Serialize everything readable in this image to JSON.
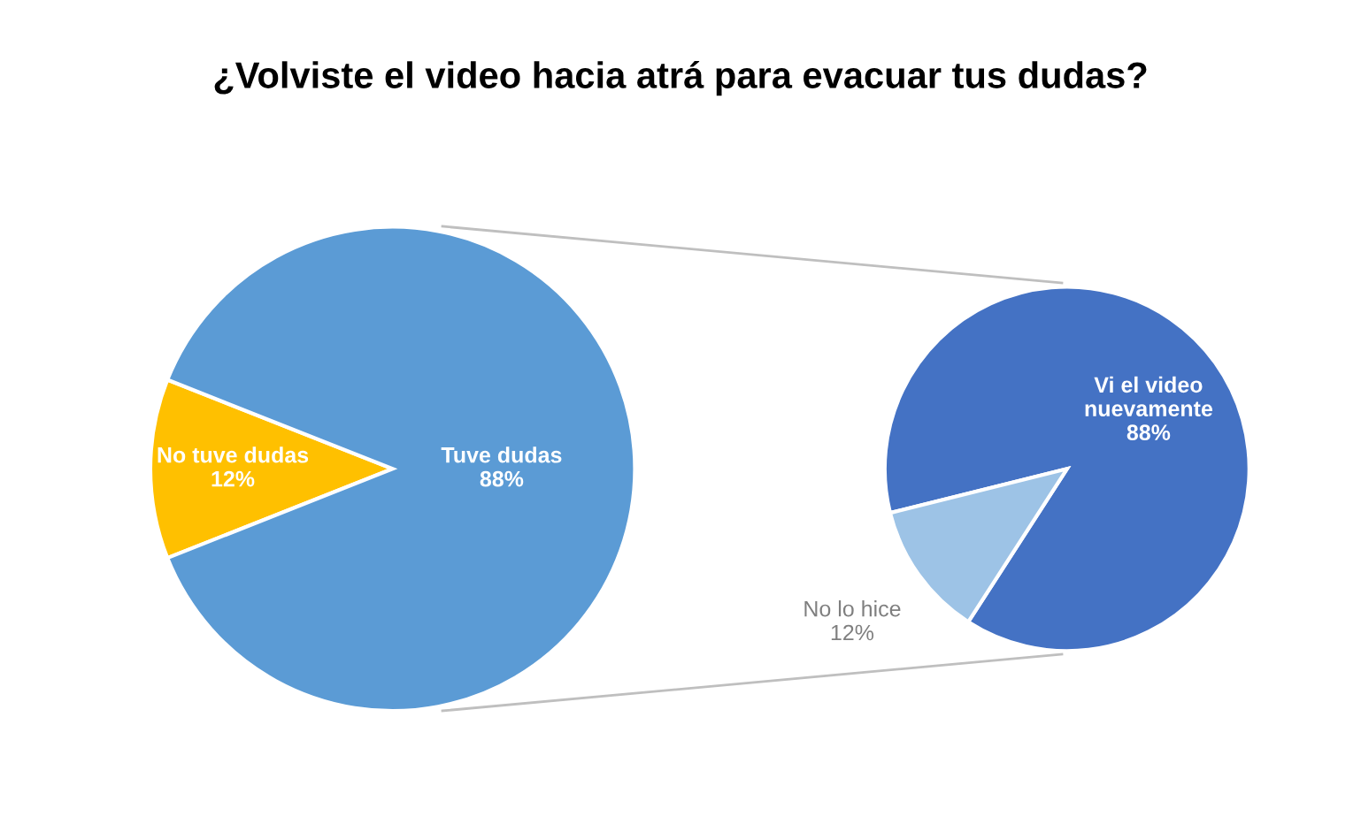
{
  "chart_data": [
    {
      "type": "pie",
      "title": "¿Volviste el video hacia atrá para evacuar tus dudas?",
      "categories": [
        "No tuve dudas",
        "Tuve dudas"
      ],
      "values": [
        12,
        88
      ],
      "colors": [
        "#ffc000",
        "#5b9bd5"
      ],
      "value_labels": [
        "12%",
        "88%"
      ],
      "legend": false
    },
    {
      "type": "pie",
      "categories": [
        "Vi el video\nnuevamente",
        "No lo hice"
      ],
      "values": [
        88,
        12
      ],
      "colors": [
        "#4472c4",
        "#9dc3e6"
      ],
      "value_labels": [
        "88%",
        "12%"
      ],
      "legend": false
    }
  ]
}
